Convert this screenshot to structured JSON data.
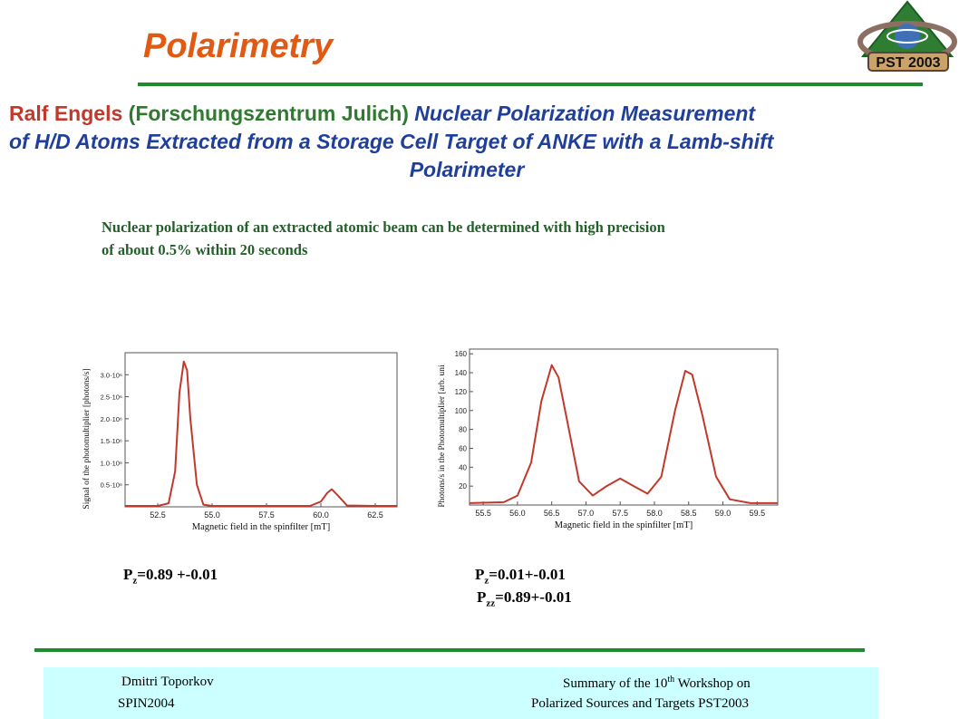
{
  "slide": {
    "title": "Polarimetry",
    "logo_text": "PST 2003",
    "author": "Ralf Engels",
    "institution": "(Forschungszentrum Julich)",
    "paper_line1": "Nuclear Polarization Measurement",
    "paper_line2": "of H/D Atoms Extracted from a Storage Cell Target of ANKE with a Lamb-shift",
    "paper_line3": "Polarimeter",
    "intro_line1": "Nuclear polarization of an extracted atomic beam can be determined with high precision",
    "intro_line2": "of about 0.5% within 20 seconds"
  },
  "results": {
    "left": {
      "sym": "P",
      "sub": "z",
      "text": "=0.89 +-0.01"
    },
    "right1": {
      "sym": "P",
      "sub": "z",
      "text": "=0.01+-0.01"
    },
    "right2": {
      "sym": "P",
      "sub": "zz",
      "text": "=0.89+-0.01"
    }
  },
  "footer": {
    "left_line1": "Dmitri Toporkov",
    "left_line2": "SPIN2004",
    "right_line1_a": "Summary of the 10",
    "right_line1_sup": "th",
    "right_line1_b": "  Workshop on",
    "right_line2": "Polarized Sources and Targets PST2003"
  },
  "chart_data": [
    {
      "type": "line",
      "xlabel": "Magnetic field in the spinfilter [mT]",
      "ylabel": "Signal of the photomultiplier [photons/s]",
      "xlim": [
        51.0,
        63.5
      ],
      "ylim": [
        0,
        3.5
      ],
      "x_ticks": [
        "52.5",
        "55.0",
        "57.5",
        "60.0",
        "62.5"
      ],
      "y_ticks": [
        "0.5·10⁶",
        "1.0·10⁶",
        "1.5·10⁶",
        "2.0·10⁶",
        "2.5·10⁶",
        "3.0·10⁶"
      ],
      "color": "#c0392b",
      "series": [
        {
          "x": [
            51.0,
            52.5,
            53.0,
            53.3,
            53.5,
            53.7,
            53.85,
            54.0,
            54.3,
            54.6,
            55.0,
            57.5,
            59.5,
            60.0,
            60.3,
            60.5,
            60.8,
            61.2,
            62.5,
            63.5
          ],
          "y": [
            0.02,
            0.02,
            0.08,
            0.8,
            2.6,
            3.3,
            3.1,
            2.0,
            0.5,
            0.05,
            0.02,
            0.02,
            0.02,
            0.12,
            0.32,
            0.4,
            0.25,
            0.03,
            0.02,
            0.02
          ]
        }
      ]
    },
    {
      "type": "line",
      "xlabel": "Magnetic field in the spinfilter [mT]",
      "ylabel": "Photons/s in the Photomultiplier [arb. uni",
      "xlim": [
        55.3,
        59.8
      ],
      "ylim": [
        0,
        165
      ],
      "x_ticks": [
        "55.5",
        "56.0",
        "56.5",
        "57.0",
        "57.5",
        "58.0",
        "58.5",
        "59.0",
        "59.5"
      ],
      "y_ticks": [
        "20",
        "40",
        "60",
        "80",
        "100",
        "120",
        "140",
        "160"
      ],
      "color": "#c0392b",
      "series": [
        {
          "x": [
            55.3,
            55.8,
            56.0,
            56.2,
            56.35,
            56.5,
            56.6,
            56.75,
            56.9,
            57.1,
            57.3,
            57.5,
            57.7,
            57.9,
            58.1,
            58.3,
            58.45,
            58.55,
            58.7,
            58.9,
            59.1,
            59.4,
            59.8
          ],
          "y": [
            2,
            3,
            10,
            45,
            110,
            148,
            135,
            80,
            25,
            10,
            20,
            28,
            20,
            12,
            30,
            100,
            142,
            138,
            95,
            30,
            6,
            2,
            2
          ]
        }
      ]
    }
  ]
}
